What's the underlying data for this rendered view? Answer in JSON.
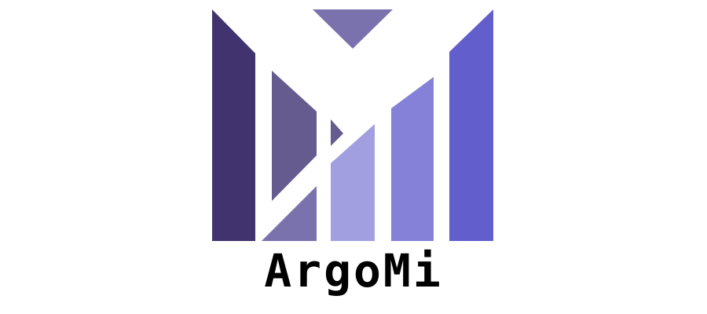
{
  "brand": {
    "name": "ArgoMi"
  },
  "colors": {
    "background": "#ffffff",
    "deep_indigo": "#41346e",
    "muted_purple": "#665b8f",
    "slate_purple": "#7a72ad",
    "lavender": "#a29fe1",
    "periwinkle": "#8681d8",
    "bright_indigo": "#625fcd",
    "wordmark": "#000000"
  },
  "icons": {
    "logo": "argomi-m-bars-logo-icon"
  }
}
